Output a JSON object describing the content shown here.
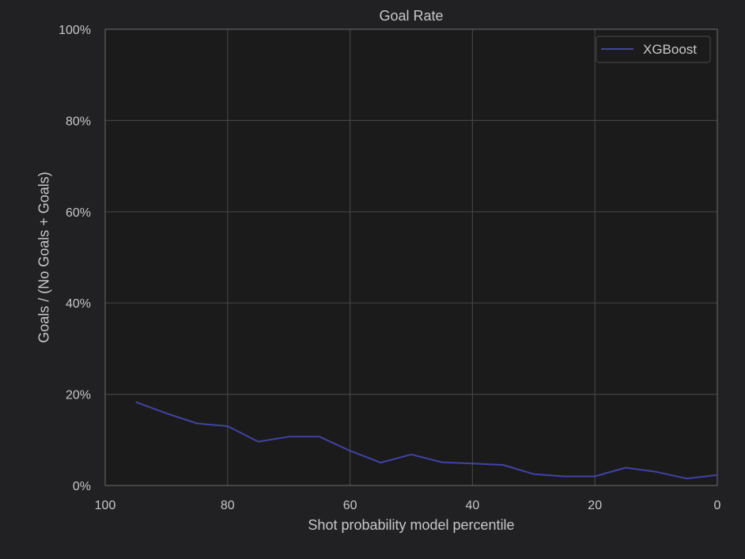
{
  "chart_data": {
    "type": "line",
    "title": "Goal Rate",
    "xlabel": "Shot probability model percentile",
    "ylabel": "Goals / (No Goals + Goals)",
    "xlim": [
      100,
      0
    ],
    "ylim": [
      0,
      100
    ],
    "x_axis_reversed": true,
    "y_format": "percent",
    "xticks": [
      100,
      80,
      60,
      40,
      20,
      0
    ],
    "yticks": [
      0,
      20,
      40,
      60,
      80,
      100
    ],
    "xtick_labels": [
      "100",
      "80",
      "60",
      "40",
      "20",
      "0"
    ],
    "ytick_labels": [
      "0%",
      "20%",
      "40%",
      "60%",
      "80%",
      "100%"
    ],
    "grid": true,
    "legend_position": "top-right",
    "colors": {
      "background": "#212124",
      "plot_background": "#1b1b1b",
      "grid": "#434343",
      "axes_frame": "#5a5a5a",
      "text": "#c7c7c7"
    },
    "series": [
      {
        "name": "XGBoost",
        "color": "#4242a8",
        "x": [
          95,
          90,
          85,
          80,
          75,
          70,
          65,
          60,
          55,
          50,
          45,
          40,
          35,
          30,
          25,
          20,
          15,
          10,
          5,
          0
        ],
        "y": [
          18.3,
          15.8,
          13.6,
          13.0,
          9.6,
          10.7,
          10.7,
          7.6,
          5.0,
          6.8,
          5.1,
          4.8,
          4.5,
          2.5,
          2.0,
          2.0,
          3.9,
          3.0,
          1.5,
          2.3
        ]
      }
    ]
  }
}
